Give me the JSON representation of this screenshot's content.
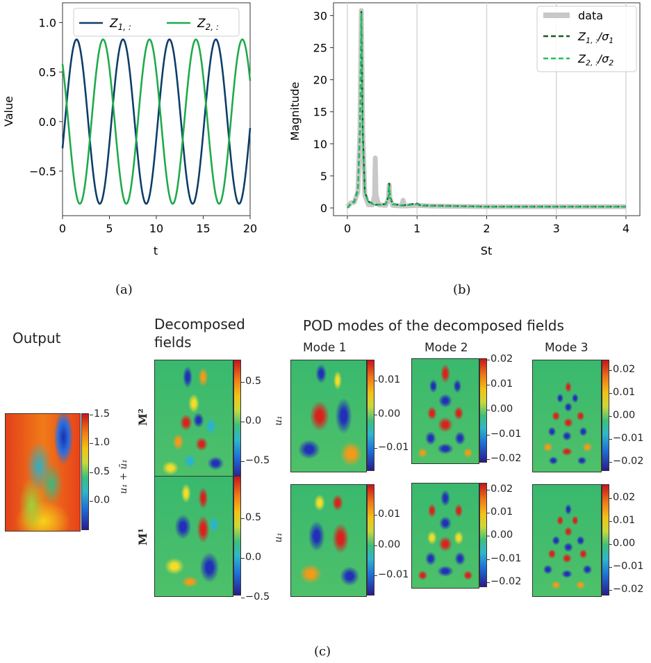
{
  "chart_data": [
    {
      "type": "line",
      "panel": "(a)",
      "xlabel": "t",
      "ylabel": "Value",
      "xlim": [
        0,
        20
      ],
      "ylim": [
        -0.95,
        1.2
      ],
      "xticks": [
        "0",
        "5",
        "10",
        "15",
        "20"
      ],
      "yticks": [
        "−0.5",
        "0.0",
        "0.5",
        "1.0"
      ],
      "grid": false,
      "legend_position": "top",
      "series": [
        {
          "name": "Z1,:",
          "amplitude": 0.83,
          "period": 4.95,
          "value_at_t0": -0.27,
          "color": "#0d3d68"
        },
        {
          "name": "Z2,:",
          "amplitude": 0.83,
          "period": 4.95,
          "value_at_t0": 0.58,
          "color": "#1faa4a"
        }
      ]
    },
    {
      "type": "line",
      "panel": "(b)",
      "xlabel": "St",
      "ylabel": "Magnitude",
      "xlim": [
        -0.2,
        4.2
      ],
      "ylim": [
        -1.2,
        32
      ],
      "xticks": [
        "0",
        "1",
        "2",
        "3",
        "4"
      ],
      "yticks": [
        "0",
        "5",
        "10",
        "15",
        "20",
        "25",
        "30"
      ],
      "grid": "vertical",
      "legend_position": "top-right",
      "series": [
        {
          "name": "data",
          "color": "#c8c8c8",
          "points": [
            [
              0,
              0.2
            ],
            [
              0.05,
              0.8
            ],
            [
              0.1,
              0.9
            ],
            [
              0.15,
              2.5
            ],
            [
              0.18,
              12
            ],
            [
              0.2,
              30.8
            ],
            [
              0.22,
              12
            ],
            [
              0.25,
              2
            ],
            [
              0.3,
              0.5
            ],
            [
              0.36,
              0.5
            ],
            [
              0.39,
              2
            ],
            [
              0.4,
              7.8
            ],
            [
              0.41,
              2
            ],
            [
              0.45,
              0.5
            ],
            [
              0.55,
              0.4
            ],
            [
              0.59,
              1.5
            ],
            [
              0.6,
              3.6
            ],
            [
              0.61,
              1.5
            ],
            [
              0.65,
              0.4
            ],
            [
              0.78,
              0.3
            ],
            [
              0.8,
              1.2
            ],
            [
              0.82,
              0.3
            ],
            [
              1.0,
              0.4
            ],
            [
              1.2,
              0.3
            ],
            [
              2.0,
              0.2
            ],
            [
              3.0,
              0.2
            ],
            [
              4.0,
              0.2
            ]
          ]
        },
        {
          "name": "Z1,:/σ1",
          "color": "#155a1f",
          "points": [
            [
              0,
              0
            ],
            [
              0.05,
              0.7
            ],
            [
              0.1,
              1
            ],
            [
              0.15,
              2.8
            ],
            [
              0.18,
              12
            ],
            [
              0.2,
              30.6
            ],
            [
              0.22,
              12
            ],
            [
              0.25,
              2.5
            ],
            [
              0.3,
              1
            ],
            [
              0.4,
              0.5
            ],
            [
              0.55,
              0.6
            ],
            [
              0.59,
              1.8
            ],
            [
              0.6,
              3.8
            ],
            [
              0.61,
              1.8
            ],
            [
              0.65,
              0.6
            ],
            [
              0.8,
              0.4
            ],
            [
              1.0,
              0.7
            ],
            [
              1.05,
              0.4
            ],
            [
              2.0,
              0.2
            ],
            [
              3.0,
              0.2
            ],
            [
              4.0,
              0.2
            ]
          ]
        },
        {
          "name": "Z2,:/σ2",
          "color": "#22c063",
          "points": [
            [
              0,
              0
            ],
            [
              0.05,
              0.6
            ],
            [
              0.1,
              0.9
            ],
            [
              0.15,
              2.6
            ],
            [
              0.18,
              11.5
            ],
            [
              0.2,
              30.4
            ],
            [
              0.22,
              11.5
            ],
            [
              0.25,
              2.4
            ],
            [
              0.3,
              0.9
            ],
            [
              0.4,
              0.45
            ],
            [
              0.55,
              0.55
            ],
            [
              0.59,
              1.6
            ],
            [
              0.6,
              3.4
            ],
            [
              0.61,
              1.6
            ],
            [
              0.65,
              0.55
            ],
            [
              0.8,
              0.35
            ],
            [
              1.0,
              0.6
            ],
            [
              1.05,
              0.35
            ],
            [
              2.0,
              0.2
            ],
            [
              3.0,
              0.2
            ],
            [
              4.0,
              0.2
            ]
          ]
        }
      ]
    },
    {
      "type": "heatmap",
      "panel": "(c)",
      "titles": {
        "output": "Output",
        "decomposed": "Decomposed fields",
        "pod": "POD modes of the decomposed fields",
        "mode1": "Mode 1",
        "mode2": "Mode 2",
        "mode3": "Mode 3"
      },
      "row_labels": [
        "M²",
        "M¹"
      ],
      "output_colorbar": {
        "label": "u₁ + ū₁",
        "ticks": [
          "1.5",
          "1.0",
          "0.5",
          "0.0"
        ]
      },
      "decomposed_colorbar_ticks": [
        "0.5",
        "0.0",
        "−0.5"
      ],
      "mode_ylabel": "u₁",
      "mode1_colorbar_ticks": [
        "0.01",
        "0.00",
        "−0.01"
      ],
      "mode2_colorbar_ticks": [
        "0.02",
        "0.01",
        "0.00",
        "−0.01",
        "−0.02"
      ],
      "mode3_colorbar_ticks": [
        "0.02",
        "0.01",
        "0.00",
        "−0.01",
        "−0.02"
      ],
      "colormap": "jet"
    }
  ],
  "captions": {
    "a": "(a)",
    "b": "(b)",
    "c": "(c)"
  },
  "legend_a": {
    "z1_name": "Z",
    "z1_sub": "1, :",
    "z2_name": "Z",
    "z2_sub": "2, :"
  },
  "legend_b": {
    "data": "data",
    "z1_name": "Z",
    "z1_sub": "1, :",
    "z1_div": "/σ",
    "z1_den": "1",
    "z2_name": "Z",
    "z2_sub": "2, :",
    "z2_div": "/σ",
    "z2_den": "2"
  }
}
